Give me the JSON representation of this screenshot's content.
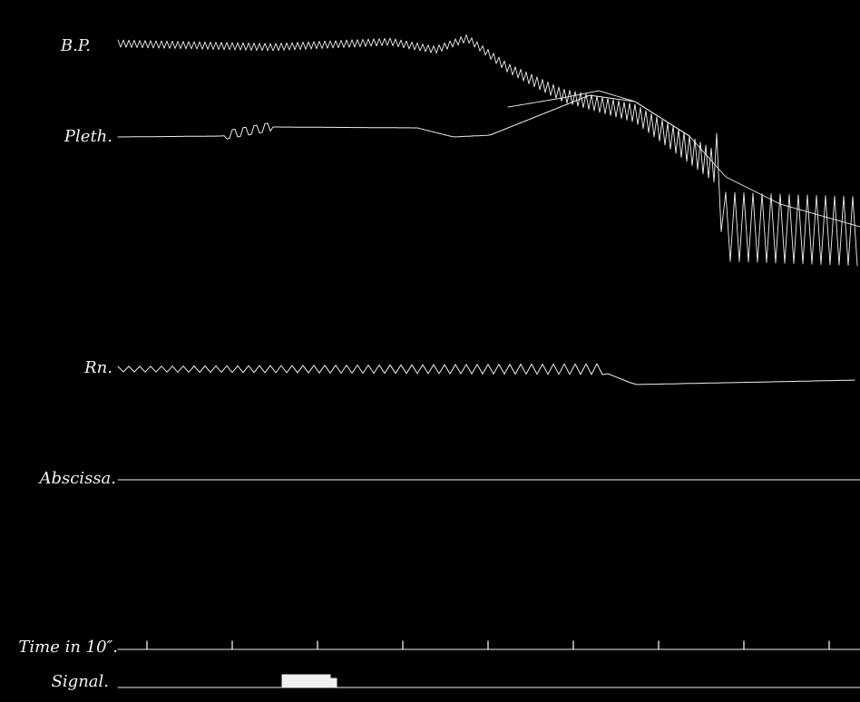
{
  "labels": {
    "bp": "B.P.",
    "pleth": "Pleth.",
    "rn": "Rn.",
    "abscissa": "Abscissa.",
    "time": "Time in 10″.",
    "signal": "Signal."
  },
  "chart_data": {
    "type": "line",
    "title": "",
    "series": [
      {
        "name": "B.P.",
        "pattern": "oscillating trace with fall",
        "baseline_phase": "steady",
        "late_phase": "large oscillations"
      },
      {
        "name": "Pleth.",
        "pattern": "smooth trace",
        "baseline_phase": "steady",
        "late_phase": "decline"
      },
      {
        "name": "Rn.",
        "pattern": "respiratory oscillations",
        "baseline_phase": "regular",
        "late_phase": "flat"
      },
      {
        "name": "Abscissa.",
        "pattern": "horizontal baseline"
      },
      {
        "name": "Time in 10″.",
        "pattern": "tick marks",
        "tick_count": 9
      },
      {
        "name": "Signal.",
        "pattern": "single raised mark",
        "count": 1
      }
    ],
    "colors": {
      "background": "#000000",
      "trace": "#f0f0f0"
    },
    "grid": false,
    "legend": "none"
  }
}
